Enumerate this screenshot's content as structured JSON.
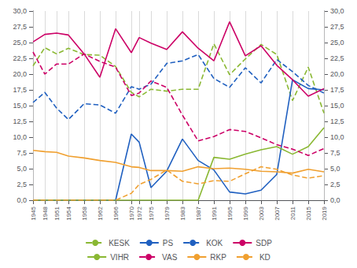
{
  "chart_data": {
    "type": "line",
    "x": [
      1945,
      1948,
      1951,
      1954,
      1958,
      1962,
      1966,
      1970,
      1972,
      1975,
      1979,
      1983,
      1987,
      1991,
      1995,
      1999,
      2003,
      2007,
      2011,
      2015,
      2019
    ],
    "series": [
      {
        "name": "KESK",
        "color": "#8ab833",
        "line_style": "dashed",
        "values": [
          21.3,
          24.2,
          23.2,
          24.1,
          23.1,
          23.0,
          21.2,
          17.1,
          16.4,
          17.6,
          17.3,
          17.6,
          17.6,
          24.8,
          19.9,
          22.4,
          24.7,
          23.1,
          15.8,
          21.1,
          13.8
        ]
      },
      {
        "name": "PS",
        "color": "#2060c0",
        "line_style": "solid",
        "values": [
          0.0,
          0.0,
          0.0,
          0.0,
          0.0,
          0.0,
          0.0,
          10.5,
          9.2,
          2.0,
          4.6,
          9.7,
          6.3,
          4.8,
          1.3,
          1.0,
          1.6,
          4.1,
          19.1,
          17.7,
          17.5
        ]
      },
      {
        "name": "KOK",
        "color": "#2060c0",
        "line_style": "dashed",
        "values": [
          15.5,
          17.1,
          14.6,
          12.8,
          15.3,
          15.1,
          13.8,
          18.0,
          17.6,
          18.4,
          21.7,
          22.1,
          23.1,
          19.3,
          17.9,
          21.0,
          18.6,
          22.3,
          20.4,
          18.2,
          17.0
        ]
      },
      {
        "name": "SDP",
        "color": "#cc0066",
        "line_style": "solid",
        "values": [
          25.1,
          26.3,
          26.5,
          26.2,
          23.2,
          19.5,
          27.2,
          23.4,
          25.8,
          24.9,
          23.9,
          26.7,
          24.1,
          22.1,
          28.3,
          22.9,
          24.5,
          21.4,
          19.1,
          16.5,
          17.7
        ]
      },
      {
        "name": "VIHR",
        "color": "#8ab833",
        "line_style": "solid",
        "values": [
          0.0,
          0.0,
          0.0,
          0.0,
          0.0,
          0.0,
          0.0,
          0.0,
          0.0,
          0.0,
          0.0,
          0.0,
          0.0,
          6.8,
          6.5,
          7.3,
          8.0,
          8.5,
          7.3,
          8.5,
          11.5
        ]
      },
      {
        "name": "VAS",
        "color": "#cc0066",
        "line_style": "dashed",
        "values": [
          23.5,
          20.0,
          21.6,
          21.6,
          23.2,
          22.0,
          21.1,
          16.6,
          17.0,
          18.9,
          17.9,
          13.5,
          9.4,
          10.1,
          11.2,
          10.9,
          9.9,
          8.8,
          8.1,
          7.1,
          8.2
        ]
      },
      {
        "name": "RKP",
        "color": "#f0a030",
        "line_style": "solid",
        "values": [
          7.9,
          7.7,
          7.6,
          7.0,
          6.7,
          6.3,
          6.0,
          5.3,
          5.2,
          4.7,
          4.7,
          4.6,
          5.3,
          5.0,
          5.1,
          4.9,
          4.6,
          4.5,
          4.3,
          4.9,
          4.5
        ]
      },
      {
        "name": "KD",
        "color": "#f0a030",
        "line_style": "dashed",
        "values": [
          0.0,
          0.0,
          0.0,
          0.0,
          0.0,
          0.0,
          0.0,
          1.1,
          2.5,
          3.3,
          4.8,
          3.0,
          2.6,
          3.1,
          3.0,
          4.2,
          5.3,
          4.9,
          4.0,
          3.5,
          3.9
        ]
      }
    ],
    "xlim": [
      1945,
      2019
    ],
    "xticks": [
      1945,
      1948,
      1951,
      1954,
      1958,
      1962,
      1966,
      1970,
      1972,
      1975,
      1979,
      1983,
      1987,
      1991,
      1995,
      1999,
      2003,
      2007,
      2011,
      2015,
      2019
    ],
    "ylim": [
      0,
      30
    ],
    "yticks": [
      {
        "value": 0.0,
        "label": "0,0"
      },
      {
        "value": 2.5,
        "label": "2,5"
      },
      {
        "value": 5.0,
        "label": "5,0"
      },
      {
        "value": 7.5,
        "label": "7,5"
      },
      {
        "value": 10.0,
        "label": "10,0"
      },
      {
        "value": 12.5,
        "label": "12,5"
      },
      {
        "value": 15.0,
        "label": "15,0"
      },
      {
        "value": 17.5,
        "label": "17,5"
      },
      {
        "value": 20.0,
        "label": "20,0"
      },
      {
        "value": 22.5,
        "label": "22,5"
      },
      {
        "value": 25.0,
        "label": "25,0"
      },
      {
        "value": 27.5,
        "label": "27,5"
      },
      {
        "value": 30.0,
        "label": "30,0"
      }
    ],
    "y2lim": [
      0,
      30
    ],
    "y2ticks": [
      {
        "value": 0.0,
        "label": "0,0"
      },
      {
        "value": 2.5,
        "label": "2,5"
      },
      {
        "value": 5.0,
        "label": "5,0"
      },
      {
        "value": 7.5,
        "label": "7,5"
      },
      {
        "value": 10.0,
        "label": "10,0"
      },
      {
        "value": 12.5,
        "label": "12,5"
      },
      {
        "value": 15.0,
        "label": "15,0"
      },
      {
        "value": 17.5,
        "label": "17,5"
      },
      {
        "value": 20.0,
        "label": "20,0"
      },
      {
        "value": 22.5,
        "label": "22,5"
      },
      {
        "value": 25.0,
        "label": "25,0"
      },
      {
        "value": 27.5,
        "label": "27,5"
      },
      {
        "value": 30.0,
        "label": "30,0"
      }
    ],
    "grid": "x",
    "legend": "bottom"
  }
}
